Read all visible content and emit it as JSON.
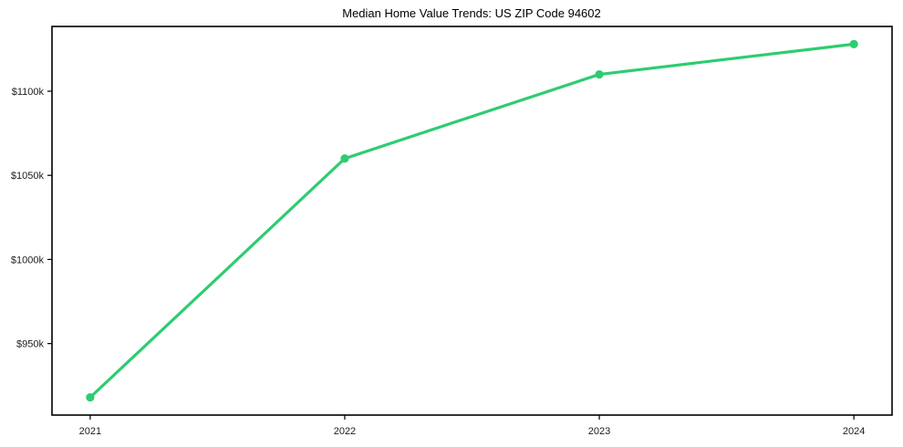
{
  "chart_data": {
    "type": "line",
    "title": "Median Home Value Trends: US ZIP Code 94602",
    "xlabel": "",
    "ylabel": "",
    "categories": [
      "2021",
      "2022",
      "2023",
      "2024"
    ],
    "x": [
      2021,
      2022,
      2023,
      2024
    ],
    "series": [
      {
        "name": "Median home value",
        "values": [
          918,
          1060,
          1110,
          1128
        ]
      }
    ],
    "unit": "USD thousands",
    "y_ticks": [
      950,
      1000,
      1050,
      1100
    ],
    "y_tick_labels": [
      "$950k",
      "$1000k",
      "$1050k",
      "$1100k"
    ],
    "xlim": [
      2020.85,
      2024.15
    ],
    "ylim": [
      907.5,
      1138.5
    ],
    "grid": false,
    "legend": "none",
    "style": {
      "line_color": "#2ecc71",
      "marker_color": "#2ecc71",
      "axis_color": "#000000",
      "text_color": "#1c1c1c",
      "background": "#ffffff"
    }
  }
}
